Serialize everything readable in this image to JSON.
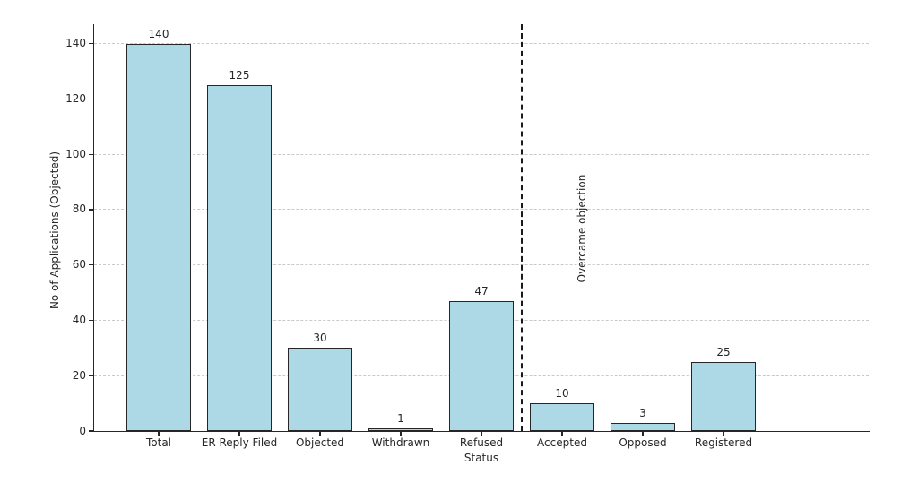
{
  "chart_data": {
    "type": "bar",
    "title": "",
    "xlabel": "Status",
    "ylabel": "No of Applications (Objected)",
    "categories": [
      "Total",
      "ER Reply Filed",
      "Objected",
      "Withdrawn",
      "Refused",
      "Accepted",
      "Opposed",
      "Registered"
    ],
    "values": [
      140,
      125,
      30,
      1,
      47,
      10,
      3,
      25
    ],
    "ylim": [
      0,
      147
    ],
    "yticks": [
      0,
      20,
      40,
      60,
      80,
      100,
      120,
      140
    ],
    "grid": "horizontal dashed, below bars",
    "legend": "none",
    "bar_color": "#ADD8E6",
    "bar_edge_color": "#262626",
    "divider": {
      "position_between": [
        "Refused",
        "Accepted"
      ],
      "label": "Overcame objection",
      "style": "vertical dashed line",
      "color": "#1a1a1a"
    }
  }
}
